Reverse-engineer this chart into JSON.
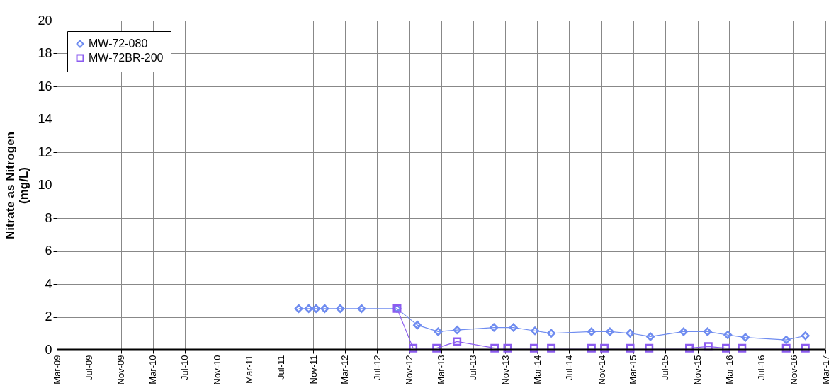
{
  "chart_data": {
    "type": "line",
    "ylabel": "Nitrate as Nitrogen\n(mg/L)",
    "xlim": [
      "2009-03-01",
      "2017-03-01"
    ],
    "xticks": [
      {
        "value": "2009-03-01",
        "label": "Mar-09"
      },
      {
        "value": "2009-07-01",
        "label": "Jul-09"
      },
      {
        "value": "2009-11-01",
        "label": "Nov-09"
      },
      {
        "value": "2010-03-01",
        "label": "Mar-10"
      },
      {
        "value": "2010-07-01",
        "label": "Jul-10"
      },
      {
        "value": "2010-11-01",
        "label": "Nov-10"
      },
      {
        "value": "2011-03-01",
        "label": "Mar-11"
      },
      {
        "value": "2011-07-01",
        "label": "Jul-11"
      },
      {
        "value": "2011-11-01",
        "label": "Nov-11"
      },
      {
        "value": "2012-03-01",
        "label": "Mar-12"
      },
      {
        "value": "2012-07-01",
        "label": "Jul-12"
      },
      {
        "value": "2012-11-01",
        "label": "Nov-12"
      },
      {
        "value": "2013-03-01",
        "label": "Mar-13"
      },
      {
        "value": "2013-07-01",
        "label": "Jul-13"
      },
      {
        "value": "2013-11-01",
        "label": "Nov-13"
      },
      {
        "value": "2014-03-01",
        "label": "Mar-14"
      },
      {
        "value": "2014-07-01",
        "label": "Jul-14"
      },
      {
        "value": "2014-11-01",
        "label": "Nov-14"
      },
      {
        "value": "2015-03-01",
        "label": "Mar-15"
      },
      {
        "value": "2015-07-01",
        "label": "Jul-15"
      },
      {
        "value": "2015-11-01",
        "label": "Nov-15"
      },
      {
        "value": "2016-03-01",
        "label": "Mar-16"
      },
      {
        "value": "2016-07-01",
        "label": "Jul-16"
      },
      {
        "value": "2016-11-01",
        "label": "Nov-16"
      },
      {
        "value": "2017-03-01",
        "label": "Mar-17"
      }
    ],
    "ylim": [
      0,
      20
    ],
    "yticks": [
      0,
      2,
      4,
      6,
      8,
      10,
      12,
      14,
      16,
      18,
      20
    ],
    "grid": true,
    "legend": "top left",
    "series": [
      {
        "name": "MW-72-080",
        "color": "#6f8cf0",
        "marker": "diamond",
        "x": [
          "2011-09-07",
          "2011-10-15",
          "2011-11-12",
          "2011-12-15",
          "2012-02-12",
          "2012-05-03",
          "2012-09-15",
          "2012-12-01",
          "2013-02-18",
          "2013-05-01",
          "2013-09-18",
          "2013-12-01",
          "2014-02-21",
          "2014-04-24",
          "2014-09-24",
          "2014-12-03",
          "2015-02-18",
          "2015-05-06",
          "2015-09-09",
          "2015-12-09",
          "2016-02-24",
          "2016-05-01",
          "2016-10-03",
          "2016-12-15"
        ],
        "values": [
          2.5,
          2.5,
          2.5,
          2.5,
          2.5,
          2.5,
          2.5,
          1.5,
          1.1,
          1.2,
          1.35,
          1.35,
          1.15,
          1.0,
          1.1,
          1.1,
          1.0,
          0.8,
          1.1,
          1.1,
          0.9,
          0.75,
          0.6,
          0.85
        ]
      },
      {
        "name": "MW-72BR-200",
        "color": "#8c5cf0",
        "marker": "square",
        "x": [
          "2012-09-15",
          "2012-11-15",
          "2013-02-12",
          "2013-05-01",
          "2013-09-21",
          "2013-11-09",
          "2014-02-18",
          "2014-04-24",
          "2014-09-24",
          "2014-11-12",
          "2015-02-18",
          "2015-05-01",
          "2015-10-01",
          "2015-12-12",
          "2016-02-18",
          "2016-04-18",
          "2016-10-03",
          "2016-12-15"
        ],
        "values": [
          2.5,
          0.1,
          0.1,
          0.5,
          0.1,
          0.1,
          0.1,
          0.1,
          0.1,
          0.1,
          0.1,
          0.1,
          0.1,
          0.2,
          0.1,
          0.1,
          0.1,
          0.1
        ]
      }
    ]
  }
}
